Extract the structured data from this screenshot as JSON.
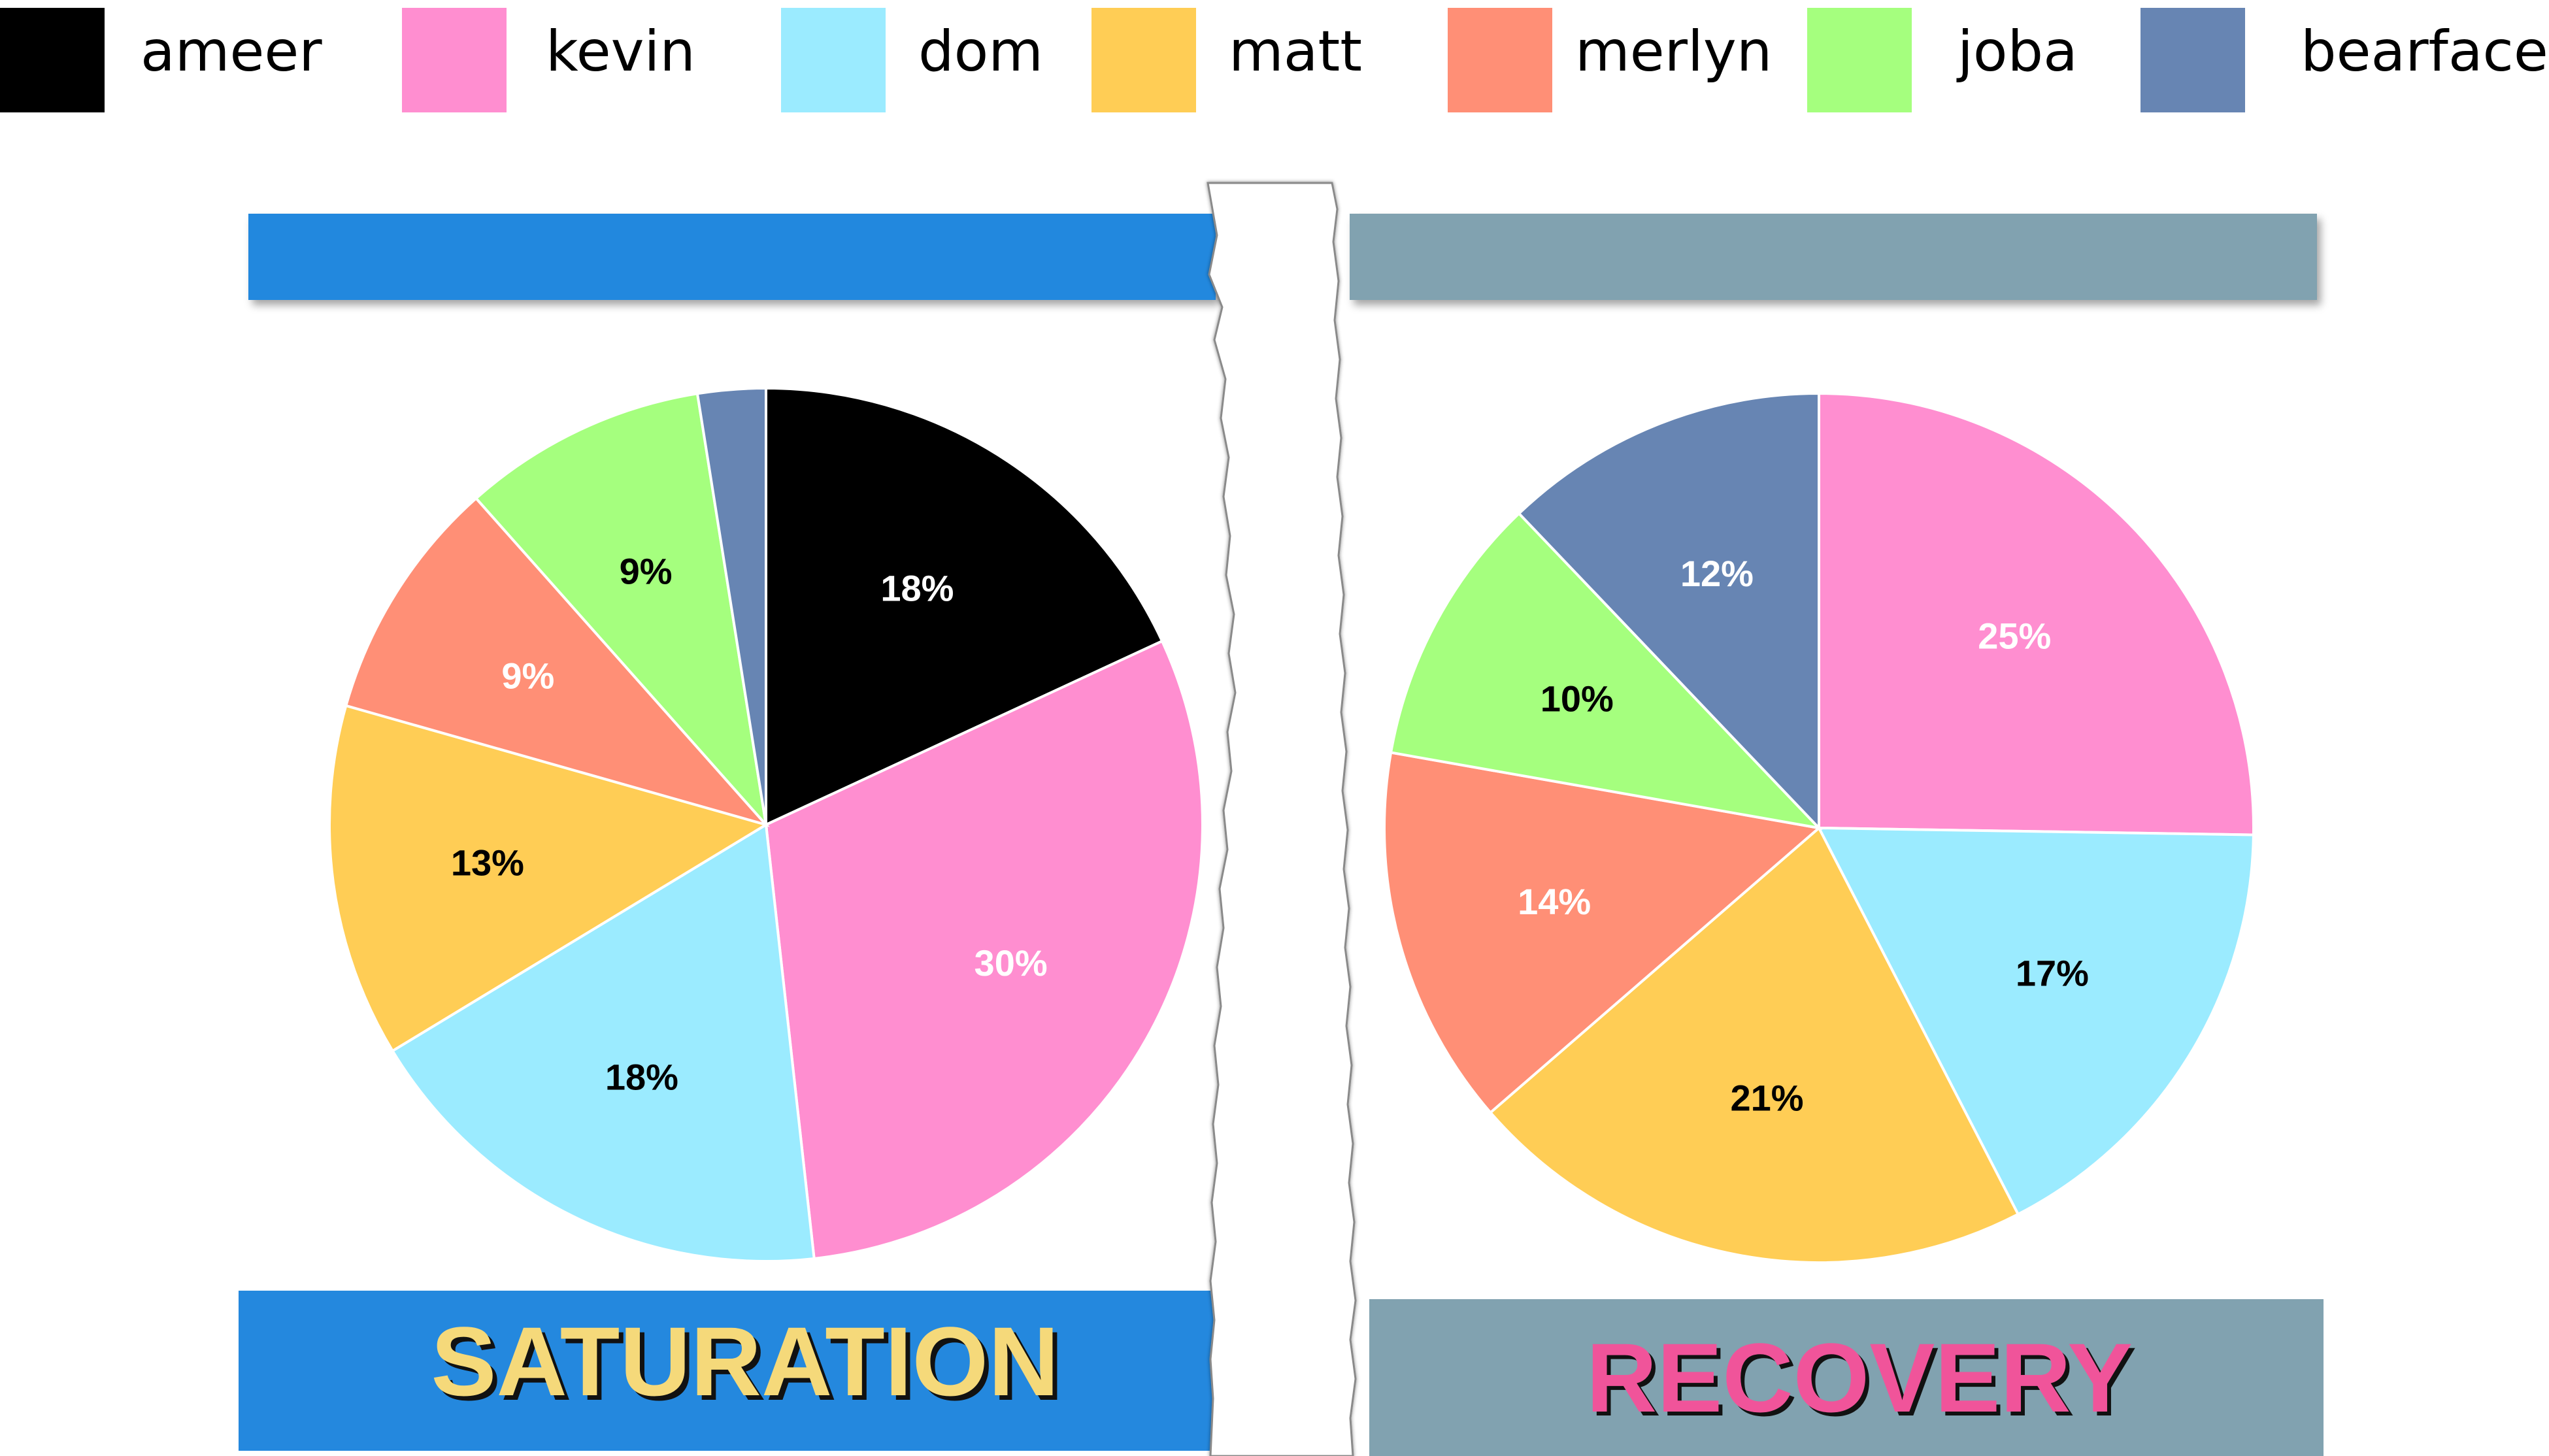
{
  "legend": [
    {
      "name": "ameer",
      "color": "#000000"
    },
    {
      "name": "kevin",
      "color": "#FF8ED0"
    },
    {
      "name": "dom",
      "color": "#9BEBFF"
    },
    {
      "name": "matt",
      "color": "#FFCD55"
    },
    {
      "name": "merlyn",
      "color": "#FF8F76"
    },
    {
      "name": "joba",
      "color": "#A5FF7E"
    },
    {
      "name": "bearface",
      "color": "#6785B3"
    }
  ],
  "panels": {
    "left": {
      "title": "SATURATION",
      "bar_color": "#2488DE",
      "title_color": "#F5D97A"
    },
    "right": {
      "title": "RECOVERY",
      "bar_color": "#81A2B0",
      "title_color": "#F0549A"
    }
  },
  "chart_data": [
    {
      "type": "pie",
      "title": "SATURATION",
      "start": "12 o'clock, clockwise",
      "slices": [
        {
          "name": "ameer",
          "value": 18,
          "label": "18%",
          "color": "#000000",
          "label_color": "#ffffff"
        },
        {
          "name": "kevin",
          "value": 30,
          "label": "30%",
          "color": "#FF8ED0",
          "label_color": "#ffffff"
        },
        {
          "name": "dom",
          "value": 18,
          "label": "18%",
          "color": "#9BEBFF",
          "label_color": "#000000"
        },
        {
          "name": "matt",
          "value": 13,
          "label": "13%",
          "color": "#FFCD55",
          "label_color": "#000000"
        },
        {
          "name": "merlyn",
          "value": 9,
          "label": "9%",
          "color": "#FF8F76",
          "label_color": "#ffffff"
        },
        {
          "name": "joba",
          "value": 9,
          "label": "9%",
          "color": "#A5FF7E",
          "label_color": "#000000"
        },
        {
          "name": "bearface",
          "value": 2.5,
          "label": "",
          "color": "#6785B3",
          "label_color": "#ffffff"
        }
      ]
    },
    {
      "type": "pie",
      "title": "RECOVERY",
      "start": "12 o'clock, clockwise",
      "slices": [
        {
          "name": "ameer",
          "value": 0,
          "label": "",
          "color": "#000000",
          "label_color": "#ffffff"
        },
        {
          "name": "kevin",
          "value": 25,
          "label": "25%",
          "color": "#FF8ED0",
          "label_color": "#ffffff"
        },
        {
          "name": "dom",
          "value": 17,
          "label": "17%",
          "color": "#9BEBFF",
          "label_color": "#000000"
        },
        {
          "name": "matt",
          "value": 21,
          "label": "21%",
          "color": "#FFCD55",
          "label_color": "#000000"
        },
        {
          "name": "merlyn",
          "value": 14,
          "label": "14%",
          "color": "#FF8F76",
          "label_color": "#ffffff"
        },
        {
          "name": "joba",
          "value": 10,
          "label": "10%",
          "color": "#A5FF7E",
          "label_color": "#000000"
        },
        {
          "name": "bearface",
          "value": 12,
          "label": "12%",
          "color": "#6785B3",
          "label_color": "#ffffff"
        }
      ]
    }
  ]
}
